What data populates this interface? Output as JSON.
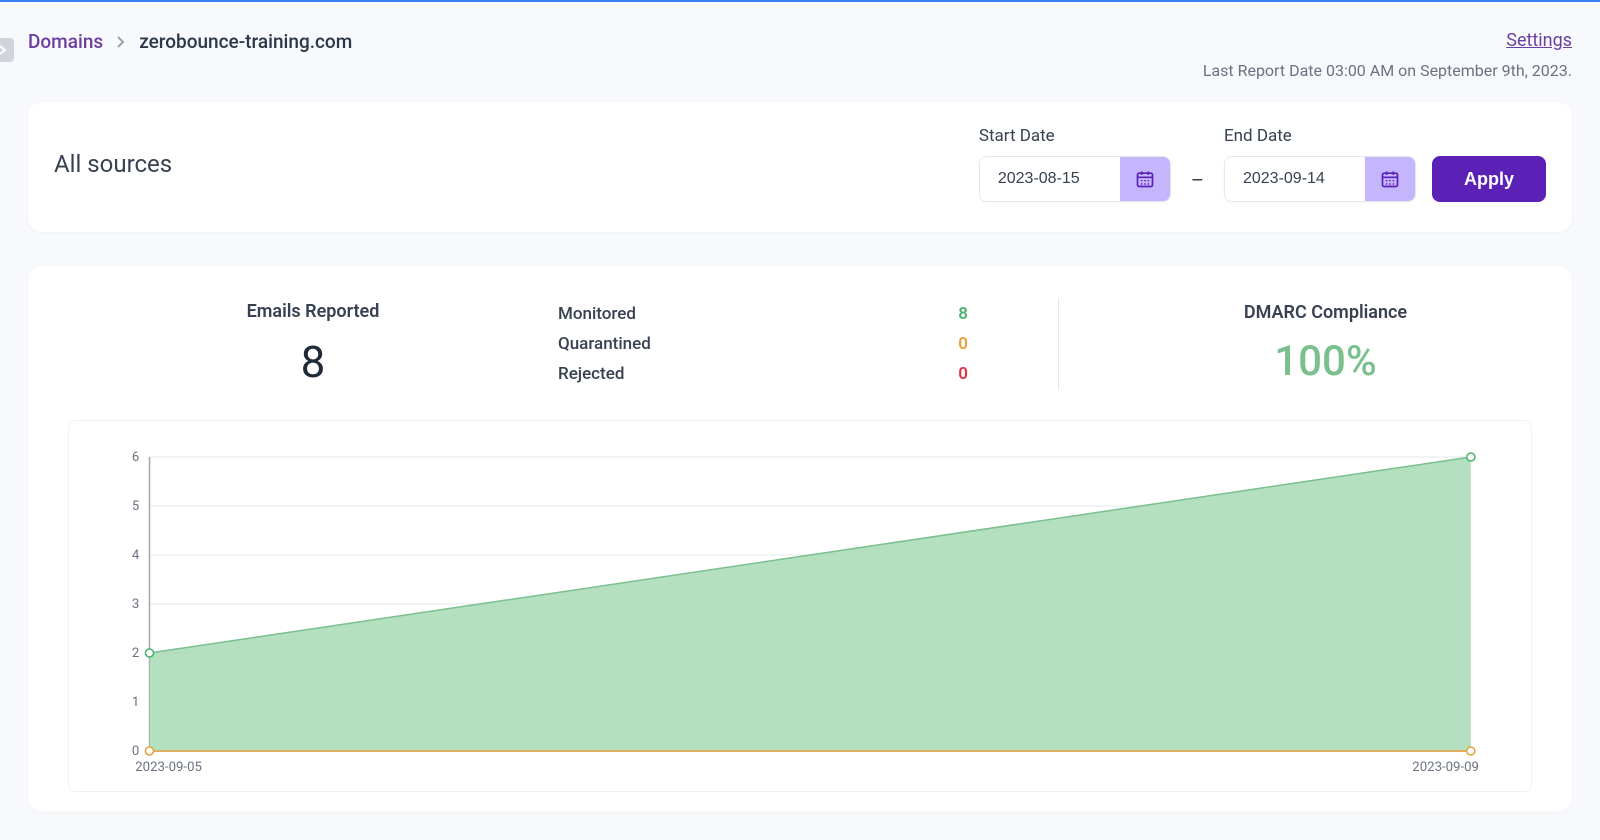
{
  "breadcrumb": {
    "root": "Domains",
    "current": "zerobounce-training.com"
  },
  "settings_link": "Settings",
  "last_report": "Last Report Date 03:00 AM on September 9th, 2023.",
  "filters": {
    "title": "All sources",
    "start_label": "Start Date",
    "start_value": "2023-08-15",
    "end_label": "End Date",
    "end_value": "2023-09-14",
    "apply_label": "Apply"
  },
  "stats": {
    "emails_label": "Emails Reported",
    "emails_value": "8",
    "breakdown": {
      "monitored_label": "Monitored",
      "monitored_value": "8",
      "monitored_color": "#4ab36f",
      "quarantined_label": "Quarantined",
      "quarantined_value": "0",
      "quarantined_color": "#e8a13a",
      "rejected_label": "Rejected",
      "rejected_value": "0",
      "rejected_color": "#dc3545"
    },
    "compliance_label": "DMARC Compliance",
    "compliance_value": "100%",
    "compliance_color": "#7abf8e"
  },
  "chart": {
    "type": "area",
    "x_labels": [
      "2023-09-05",
      "2023-09-09"
    ],
    "series": [
      {
        "values": [
          2,
          6
        ],
        "line_color": "#7abf8e",
        "fill_color": "#a8dab5",
        "fill_opacity": 0.85,
        "marker_color": "#4ab36f"
      },
      {
        "values": [
          0,
          0
        ],
        "line_color": "#e8a13a",
        "fill_color": "#f4cf95",
        "fill_opacity": 0.5,
        "marker_color": "#e8a13a"
      }
    ],
    "ylim": [
      0,
      6
    ],
    "ytick_step": 1,
    "grid_color": "#e5e7eb",
    "axis_color": "#a7a7b0",
    "label_fontsize": 13,
    "label_color": "#6b7280",
    "background_color": "#ffffff",
    "marker_radius": 4,
    "line_width": 1.5
  },
  "colors": {
    "accent": "#5b21b6",
    "accent_light": "#c4b5fd",
    "page_bg": "#f8f9fc"
  }
}
